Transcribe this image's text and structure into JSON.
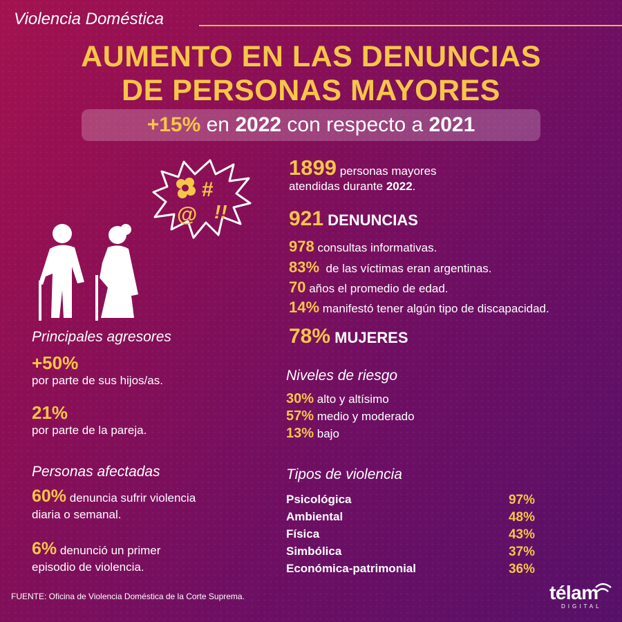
{
  "header": {
    "section": "Violencia Doméstica",
    "title_line1": "AUMENTO EN LAS DENUNCIAS",
    "title_line2": "DE PERSONAS MAYORES"
  },
  "subtitle": {
    "pct": "+15%",
    "pre": " en ",
    "year1": "2022",
    "mid": " con respecto a ",
    "year2": "2021"
  },
  "stats": {
    "attended": {
      "num": "1899",
      "text1": " personas mayores",
      "text2": "atendidas durante ",
      "year": "2022",
      "end": "."
    },
    "complaints": {
      "num": "921",
      "text": " DENUNCIAS"
    },
    "consultations": {
      "num": "978",
      "text": " consultas informativas."
    },
    "argentinas": {
      "num": "83%",
      "text": "  de las víctimas eran argentinas."
    },
    "age": {
      "num": "70",
      "text": " años el promedio de edad."
    },
    "disability": {
      "num": "14%",
      "text": " manifestó tener algún tipo de discapacidad."
    },
    "women": {
      "num": "78%",
      "text": " MUJERES"
    }
  },
  "aggressors": {
    "title": "Principales agresores",
    "items": [
      {
        "num": "+50%",
        "text": "por parte de sus hijos/as."
      },
      {
        "num": "21%",
        "text": "por parte de la pareja."
      }
    ]
  },
  "affected": {
    "title": "Personas afectadas",
    "items": [
      {
        "num": "60%",
        "line1": " denuncia sufrir violencia",
        "line2": "diaria o semanal."
      },
      {
        "num": "6%",
        "line1": " denunció un primer",
        "line2": "episodio de violencia."
      }
    ]
  },
  "risk": {
    "title": "Niveles de riesgo",
    "items": [
      {
        "num": "30%",
        "text": " alto y altísimo"
      },
      {
        "num": "57%",
        "text": " medio y moderado"
      },
      {
        "num": "13%",
        "text": " bajo"
      }
    ]
  },
  "violence": {
    "title": "Tipos de violencia",
    "items": [
      {
        "name": "Psicológica",
        "pct": "97%"
      },
      {
        "name": "Ambiental",
        "pct": "48%"
      },
      {
        "name": "Física",
        "pct": "43%"
      },
      {
        "name": "Simbólica",
        "pct": "37%"
      },
      {
        "name": "Económica-patrimonial",
        "pct": "36%"
      }
    ]
  },
  "illustration": {
    "burst_symbols": "#",
    "at": "@",
    "bang": "!!"
  },
  "footer": {
    "source": "FUENTE: Oficina de Violencia Doméstica de la Corte Suprema.",
    "brand": "télam",
    "brand_sub": "DIGITAL"
  },
  "colors": {
    "accent": "#f7c548",
    "bg_start": "#a3124f",
    "bg_end": "#561068"
  }
}
